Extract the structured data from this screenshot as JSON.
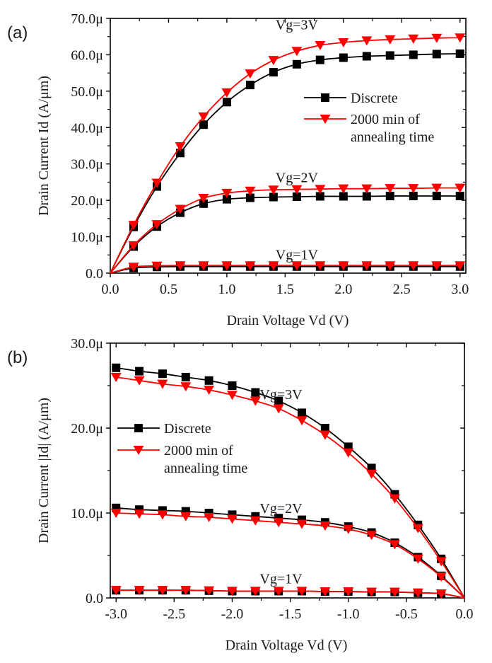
{
  "colors": {
    "discrete": "#000000",
    "annealed": "#ff0000",
    "axis": "#000000",
    "text": "#1a1a1a"
  },
  "chart_data": [
    {
      "panel": "(a)",
      "type": "line",
      "xlabel": "Drain Voltage Vd (V)",
      "ylabel": "Drain Current Id (A/μm)",
      "xlim": [
        0.0,
        3.05
      ],
      "ylim": [
        0,
        70
      ],
      "y_unit": "μA/μm",
      "x_ticks": [
        0.0,
        0.5,
        1.0,
        1.5,
        2.0,
        2.5,
        3.0
      ],
      "x_tick_labels": [
        "0.0",
        "0.5",
        "1.0",
        "1.5",
        "2.0",
        "2.5",
        "3.0"
      ],
      "y_ticks": [
        0,
        10,
        20,
        30,
        40,
        50,
        60,
        70
      ],
      "y_tick_labels": [
        "0.0",
        "10.0μ",
        "20.0μ",
        "30.0μ",
        "40.0μ",
        "50.0μ",
        "60.0μ",
        "70.0μ"
      ],
      "legend": {
        "placement": "right-center",
        "entries": [
          {
            "label_lines": [
              "Discrete"
            ],
            "marker": "square",
            "series_key": "discrete"
          },
          {
            "label_lines": [
              "2000 min of",
              "annealing time"
            ],
            "marker": "triangle-down",
            "series_key": "annealed"
          }
        ]
      },
      "annotations": [
        {
          "text": "Vg=3V",
          "x": 1.6,
          "y": 67.0
        },
        {
          "text": "Vg=2V",
          "x": 1.6,
          "y": 25.0
        },
        {
          "text": "Vg=1V",
          "x": 1.6,
          "y": 3.8
        }
      ],
      "x": [
        0.0,
        0.2,
        0.4,
        0.6,
        0.8,
        1.0,
        1.2,
        1.4,
        1.6,
        1.8,
        2.0,
        2.2,
        2.4,
        2.6,
        2.8,
        3.0
      ],
      "series": [
        {
          "name": "Discrete",
          "key": "discrete",
          "gate": "Vg=3V",
          "values": [
            0,
            12.7,
            23.8,
            33.0,
            40.8,
            47.0,
            51.7,
            55.2,
            57.4,
            58.6,
            59.2,
            59.6,
            59.8,
            60.0,
            60.2,
            60.3
          ]
        },
        {
          "name": "2000 min of annealing time",
          "key": "annealed",
          "gate": "Vg=3V",
          "values": [
            0,
            13.2,
            24.8,
            34.8,
            43.0,
            49.6,
            54.8,
            58.5,
            61.0,
            62.6,
            63.4,
            63.9,
            64.2,
            64.4,
            64.6,
            64.7
          ]
        },
        {
          "name": "Discrete",
          "key": "discrete",
          "gate": "Vg=2V",
          "values": [
            0,
            7.3,
            12.8,
            16.6,
            19.1,
            20.3,
            20.7,
            20.9,
            21.0,
            21.1,
            21.1,
            21.1,
            21.2,
            21.2,
            21.2,
            21.2
          ]
        },
        {
          "name": "2000 min of annealing time",
          "key": "annealed",
          "gate": "Vg=2V",
          "values": [
            0,
            7.6,
            13.4,
            17.6,
            20.6,
            22.0,
            22.6,
            22.9,
            23.0,
            23.1,
            23.2,
            23.2,
            23.3,
            23.3,
            23.4,
            23.4
          ]
        },
        {
          "name": "Discrete",
          "key": "discrete",
          "gate": "Vg=1V",
          "values": [
            0,
            1.4,
            1.7,
            1.8,
            1.8,
            1.8,
            1.8,
            1.8,
            1.8,
            1.8,
            1.8,
            1.8,
            1.8,
            1.8,
            1.8,
            1.8
          ]
        },
        {
          "name": "2000 min of annealing time",
          "key": "annealed",
          "gate": "Vg=1V",
          "values": [
            0,
            1.7,
            2.0,
            2.1,
            2.1,
            2.1,
            2.1,
            2.1,
            2.1,
            2.1,
            2.1,
            2.1,
            2.1,
            2.1,
            2.1,
            2.1
          ]
        }
      ]
    },
    {
      "panel": "(b)",
      "type": "line",
      "xlabel": "Drain Voltage Vd (V)",
      "ylabel": "Drain Current |Id| (A/μm)",
      "xlim": [
        -3.05,
        0.0
      ],
      "ylim": [
        0,
        30
      ],
      "y_unit": "μA/μm",
      "x_ticks": [
        -3.0,
        -2.5,
        -2.0,
        -1.5,
        -1.0,
        -0.5,
        0.0
      ],
      "x_tick_labels": [
        "-3.0",
        "-2.5",
        "-2.0",
        "-1.5",
        "-1.0",
        "-0.5",
        "0.0"
      ],
      "y_ticks": [
        0,
        10,
        20,
        30
      ],
      "y_tick_labels": [
        "0.0",
        "10.0μ",
        "20.0μ",
        "30.0μ"
      ],
      "legend": {
        "placement": "left-center",
        "entries": [
          {
            "label_lines": [
              "Discrete"
            ],
            "marker": "square",
            "series_key": "discrete"
          },
          {
            "label_lines": [
              "2000 min of",
              "annealing time"
            ],
            "marker": "triangle-down",
            "series_key": "annealed"
          }
        ]
      },
      "annotations": [
        {
          "text": "Vg=3V",
          "x": -1.58,
          "y": 23.4
        },
        {
          "text": "Vg=2V",
          "x": -1.58,
          "y": 10.0
        },
        {
          "text": "Vg=1V",
          "x": -1.58,
          "y": 1.7
        }
      ],
      "x": [
        -3.0,
        -2.8,
        -2.6,
        -2.4,
        -2.2,
        -2.0,
        -1.8,
        -1.6,
        -1.4,
        -1.2,
        -1.0,
        -0.8,
        -0.6,
        -0.4,
        -0.2,
        0.0
      ],
      "series": [
        {
          "name": "Discrete",
          "key": "discrete",
          "gate": "Vg=3V",
          "values": [
            27.1,
            26.7,
            26.4,
            26.0,
            25.6,
            25.0,
            24.2,
            23.2,
            21.8,
            20.0,
            17.8,
            15.3,
            12.2,
            8.6,
            4.6,
            0
          ]
        },
        {
          "name": "2000 min of annealing time",
          "key": "annealed",
          "gate": "Vg=3V",
          "values": [
            26.0,
            25.6,
            25.2,
            24.9,
            24.5,
            23.9,
            23.2,
            22.3,
            20.9,
            19.2,
            17.1,
            14.6,
            11.7,
            8.2,
            4.3,
            0
          ]
        },
        {
          "name": "Discrete",
          "key": "discrete",
          "gate": "Vg=2V",
          "values": [
            10.6,
            10.4,
            10.3,
            10.2,
            10.0,
            9.8,
            9.6,
            9.4,
            9.2,
            8.9,
            8.4,
            7.7,
            6.5,
            4.8,
            2.6,
            0
          ]
        },
        {
          "name": "2000 min of annealing time",
          "key": "annealed",
          "gate": "Vg=2V",
          "values": [
            10.0,
            9.9,
            9.8,
            9.6,
            9.5,
            9.3,
            9.1,
            8.9,
            8.7,
            8.5,
            8.1,
            7.4,
            6.3,
            4.6,
            2.5,
            0
          ]
        },
        {
          "name": "Discrete",
          "key": "discrete",
          "gate": "Vg=1V",
          "values": [
            0.9,
            0.9,
            0.9,
            0.9,
            0.85,
            0.8,
            0.8,
            0.8,
            0.8,
            0.75,
            0.75,
            0.7,
            0.7,
            0.6,
            0.5,
            0
          ]
        },
        {
          "name": "2000 min of annealing time",
          "key": "annealed",
          "gate": "Vg=1V",
          "values": [
            0.9,
            0.9,
            0.9,
            0.9,
            0.85,
            0.8,
            0.8,
            0.8,
            0.8,
            0.75,
            0.75,
            0.7,
            0.7,
            0.6,
            0.5,
            0
          ]
        }
      ]
    }
  ]
}
